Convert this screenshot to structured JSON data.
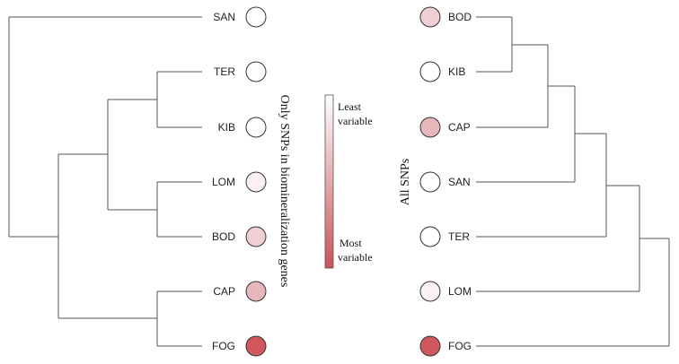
{
  "left_tree": {
    "side_title": "Only SNPs in biomineralization genes",
    "taxa": [
      {
        "label": "SAN",
        "color": "#ffffff"
      },
      {
        "label": "TER",
        "color": "#ffffff"
      },
      {
        "label": "KIB",
        "color": "#ffffff"
      },
      {
        "label": "LOM",
        "color": "#fbf1f3"
      },
      {
        "label": "BOD",
        "color": "#efcfd3"
      },
      {
        "label": "CAP",
        "color": "#e6b8bc"
      },
      {
        "label": "FOG",
        "color": "#d0575d"
      }
    ]
  },
  "right_tree": {
    "side_title": "All SNPs",
    "taxa": [
      {
        "label": "BOD",
        "color": "#efcfd3"
      },
      {
        "label": "KIB",
        "color": "#ffffff"
      },
      {
        "label": "CAP",
        "color": "#e6b8bc"
      },
      {
        "label": "SAN",
        "color": "#ffffff"
      },
      {
        "label": "TER",
        "color": "#ffffff"
      },
      {
        "label": "LOM",
        "color": "#fbf1f3"
      },
      {
        "label": "FOG",
        "color": "#d0575d"
      }
    ]
  },
  "legend": {
    "top_label_line1": "Least",
    "top_label_line2": "variable",
    "bottom_label_line1": "Most",
    "bottom_label_line2": "variable",
    "color_low": "#ffffff",
    "color_high": "#c9545a"
  }
}
